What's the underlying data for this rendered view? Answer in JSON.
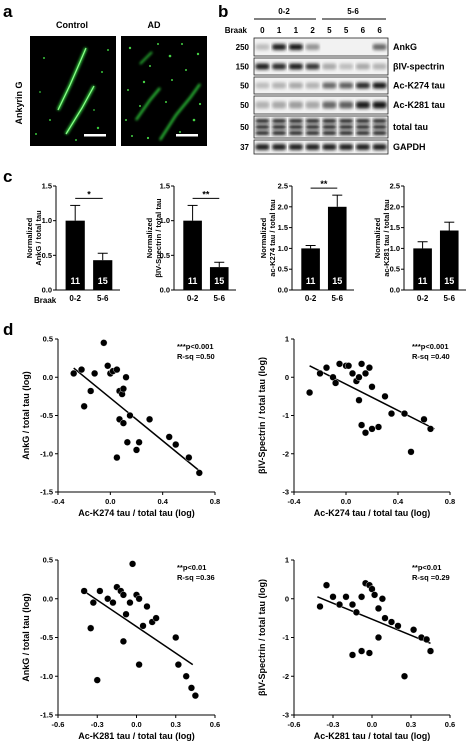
{
  "panel_a": {
    "letter": "a",
    "ylabel": "Ankyrin G",
    "images": [
      {
        "label": "Control"
      },
      {
        "label": "AD"
      }
    ]
  },
  "panel_b": {
    "letter": "b",
    "groups": [
      "0-2",
      "5-6"
    ],
    "lane_label": "Braak",
    "lanes": [
      "0",
      "1",
      "1",
      "2",
      "5",
      "5",
      "6",
      "6"
    ],
    "mw_markers": [
      "250",
      "150",
      "50",
      "50",
      "50",
      "37"
    ],
    "blots": [
      "AnkG",
      "βIV-spectrin",
      "Ac-K274 tau",
      "Ac-K281 tau",
      "total tau",
      "GAPDH"
    ]
  },
  "panel_c": {
    "letter": "c",
    "xaxis_title": "Braak",
    "charts": [
      {
        "ylabel": [
          "Normalized",
          "AnkG / total tau"
        ],
        "yticks": [
          "0.0",
          "0.5",
          "1.0",
          "1.5"
        ],
        "ymax": 1.5,
        "categories": [
          "0-2",
          "5-6"
        ],
        "values": [
          1.0,
          0.43
        ],
        "errors": [
          0.22,
          0.1
        ],
        "n": [
          "11",
          "15"
        ],
        "sig": "*"
      },
      {
        "ylabel": [
          "Normalized",
          "βIV-Spectrin / total tau"
        ],
        "yticks": [
          "0.0",
          "0.5",
          "1.0",
          "1.5"
        ],
        "ymax": 1.5,
        "categories": [
          "0-2",
          "5-6"
        ],
        "values": [
          1.0,
          0.33
        ],
        "errors": [
          0.22,
          0.07
        ],
        "n": [
          "11",
          "15"
        ],
        "sig": "**"
      },
      {
        "ylabel": [
          "Normalized",
          "ac-K274 tau / total tau"
        ],
        "yticks": [
          "0.0",
          "0.5",
          "1.0",
          "1.5",
          "2.0",
          "2.5"
        ],
        "ymax": 2.5,
        "categories": [
          "0-2",
          "5-6"
        ],
        "values": [
          1.0,
          2.0
        ],
        "errors": [
          0.07,
          0.28
        ],
        "n": [
          "11",
          "15"
        ],
        "sig": "**"
      },
      {
        "ylabel": [
          "Normalized",
          "ac-K281 tau / total tau"
        ],
        "yticks": [
          "0.0",
          "0.5",
          "1.0",
          "1.5",
          "2.0",
          "2.5"
        ],
        "ymax": 2.5,
        "categories": [
          "0-2",
          "5-6"
        ],
        "values": [
          1.0,
          1.43
        ],
        "errors": [
          0.16,
          0.2
        ],
        "n": [
          "11",
          "15"
        ],
        "sig": ""
      }
    ]
  },
  "panel_d": {
    "letter": "d",
    "plots": [
      {
        "xlabel": "Ac-K274 tau / total tau (log)",
        "ylabel": "AnkG / total tau (log)",
        "xticks": [
          "-0.4",
          "0.0",
          "0.4",
          "0.8"
        ],
        "yticks": [
          "0.5",
          "0.0",
          "-0.5",
          "-1.0",
          "-1.5"
        ],
        "xlim": [
          -0.4,
          0.8
        ],
        "ylim": [
          -1.5,
          0.5
        ],
        "stat_p": "***p<0.001",
        "stat_r": "R-sq =0.50",
        "fit": {
          "x": [
            -0.28,
            0.7
          ],
          "y": [
            0.12,
            -1.25
          ]
        },
        "points": {
          "x": [
            -0.28,
            -0.22,
            -0.2,
            -0.15,
            -0.12,
            -0.05,
            -0.02,
            0.0,
            0.02,
            0.05,
            0.07,
            0.09,
            0.1,
            0.12,
            0.13,
            0.05,
            0.07,
            0.1,
            0.15,
            0.2,
            0.22,
            0.3,
            0.45,
            0.5,
            0.6,
            0.68
          ],
          "y": [
            0.05,
            0.1,
            -0.38,
            -0.18,
            0.05,
            0.45,
            0.15,
            0.05,
            0.08,
            0.1,
            -0.18,
            -0.22,
            -0.15,
            0.0,
            -0.85,
            -1.05,
            -0.55,
            -0.6,
            -0.5,
            -0.95,
            -0.85,
            -0.55,
            -0.78,
            -0.88,
            -1.05,
            -1.25
          ]
        }
      },
      {
        "xlabel": "Ac-K274 tau / total tau (log)",
        "ylabel": "βIV-Spectrin / total tau (log)",
        "xticks": [
          "-0.4",
          "0.0",
          "0.4",
          "0.8"
        ],
        "yticks": [
          "1",
          "0",
          "-1",
          "-2",
          "-3"
        ],
        "xlim": [
          -0.4,
          0.8
        ],
        "ylim": [
          -3,
          1
        ],
        "stat_p": "***p<0.001",
        "stat_r": "R-sq =0.40",
        "fit": {
          "x": [
            -0.28,
            0.68
          ],
          "y": [
            0.3,
            -1.35
          ]
        },
        "points": {
          "x": [
            -0.28,
            -0.2,
            -0.15,
            -0.1,
            -0.08,
            -0.05,
            0.0,
            0.02,
            0.05,
            0.08,
            0.1,
            0.12,
            0.15,
            0.18,
            0.2,
            0.1,
            0.12,
            0.15,
            0.2,
            0.25,
            0.3,
            0.35,
            0.45,
            0.5,
            0.6,
            0.65
          ],
          "y": [
            -0.4,
            0.1,
            0.25,
            0.0,
            -0.15,
            0.35,
            0.3,
            0.3,
            0.1,
            -0.1,
            0.0,
            0.35,
            0.1,
            0.25,
            -0.25,
            -0.6,
            -1.25,
            -1.45,
            -1.35,
            -1.3,
            -0.5,
            -0.95,
            -0.95,
            -1.95,
            -1.1,
            -1.35
          ]
        }
      },
      {
        "xlabel": "Ac-K281 tau / total tau (log)",
        "ylabel": "AnkG / total tau (log)",
        "xticks": [
          "-0.6",
          "-0.3",
          "0.0",
          "0.3",
          "0.6"
        ],
        "yticks": [
          "0.5",
          "0.0",
          "-0.5",
          "-1.0",
          "-1.5"
        ],
        "xlim": [
          -0.6,
          0.6
        ],
        "ylim": [
          -1.5,
          0.5
        ],
        "stat_p": "**p<0.01",
        "stat_r": "R-sq =0.36",
        "fit": {
          "x": [
            -0.42,
            0.43
          ],
          "y": [
            0.12,
            -0.85
          ]
        },
        "points": {
          "x": [
            -0.4,
            -0.35,
            -0.33,
            -0.28,
            -0.22,
            -0.18,
            -0.15,
            -0.12,
            -0.1,
            -0.08,
            -0.05,
            -0.03,
            0.0,
            0.02,
            0.05,
            0.08,
            -0.3,
            -0.1,
            0.02,
            0.12,
            0.15,
            0.3,
            0.32,
            0.38,
            0.42,
            0.45
          ],
          "y": [
            0.1,
            -0.38,
            -0.05,
            0.1,
            0.0,
            -0.05,
            0.15,
            0.1,
            0.05,
            -0.2,
            -0.05,
            0.45,
            0.05,
            0.0,
            -0.35,
            -0.1,
            -1.05,
            -0.55,
            -0.85,
            -0.3,
            -0.25,
            -0.5,
            -0.85,
            -1.0,
            -1.15,
            -1.25
          ]
        }
      },
      {
        "xlabel": "Ac-K281 tau / total tau (log)",
        "ylabel": "βIV-Spectrin / total tau (log)",
        "xticks": [
          "-0.6",
          "-0.3",
          "0.0",
          "0.3",
          "0.6"
        ],
        "yticks": [
          "1",
          "0",
          "-1",
          "-2",
          "-3"
        ],
        "xlim": [
          -0.6,
          0.6
        ],
        "ylim": [
          -3,
          1
        ],
        "stat_p": "**p<0.01",
        "stat_r": "R-sq =0.29",
        "fit": {
          "x": [
            -0.42,
            0.45
          ],
          "y": [
            0.05,
            -1.15
          ]
        },
        "points": {
          "x": [
            -0.4,
            -0.35,
            -0.3,
            -0.25,
            -0.2,
            -0.15,
            -0.12,
            -0.08,
            -0.05,
            -0.02,
            0.0,
            0.02,
            0.05,
            0.08,
            0.1,
            0.15,
            -0.15,
            -0.08,
            -0.02,
            0.05,
            0.2,
            0.25,
            0.32,
            0.38,
            0.42,
            0.45
          ],
          "y": [
            -0.2,
            0.35,
            0.05,
            -0.15,
            0.05,
            -0.15,
            -0.35,
            0.05,
            0.4,
            0.35,
            0.25,
            0.1,
            -0.25,
            0.0,
            -0.5,
            -0.6,
            -1.45,
            -1.35,
            -1.4,
            -1.0,
            -0.7,
            -2.0,
            -0.8,
            -1.0,
            -1.05,
            -1.35
          ]
        }
      }
    ]
  }
}
